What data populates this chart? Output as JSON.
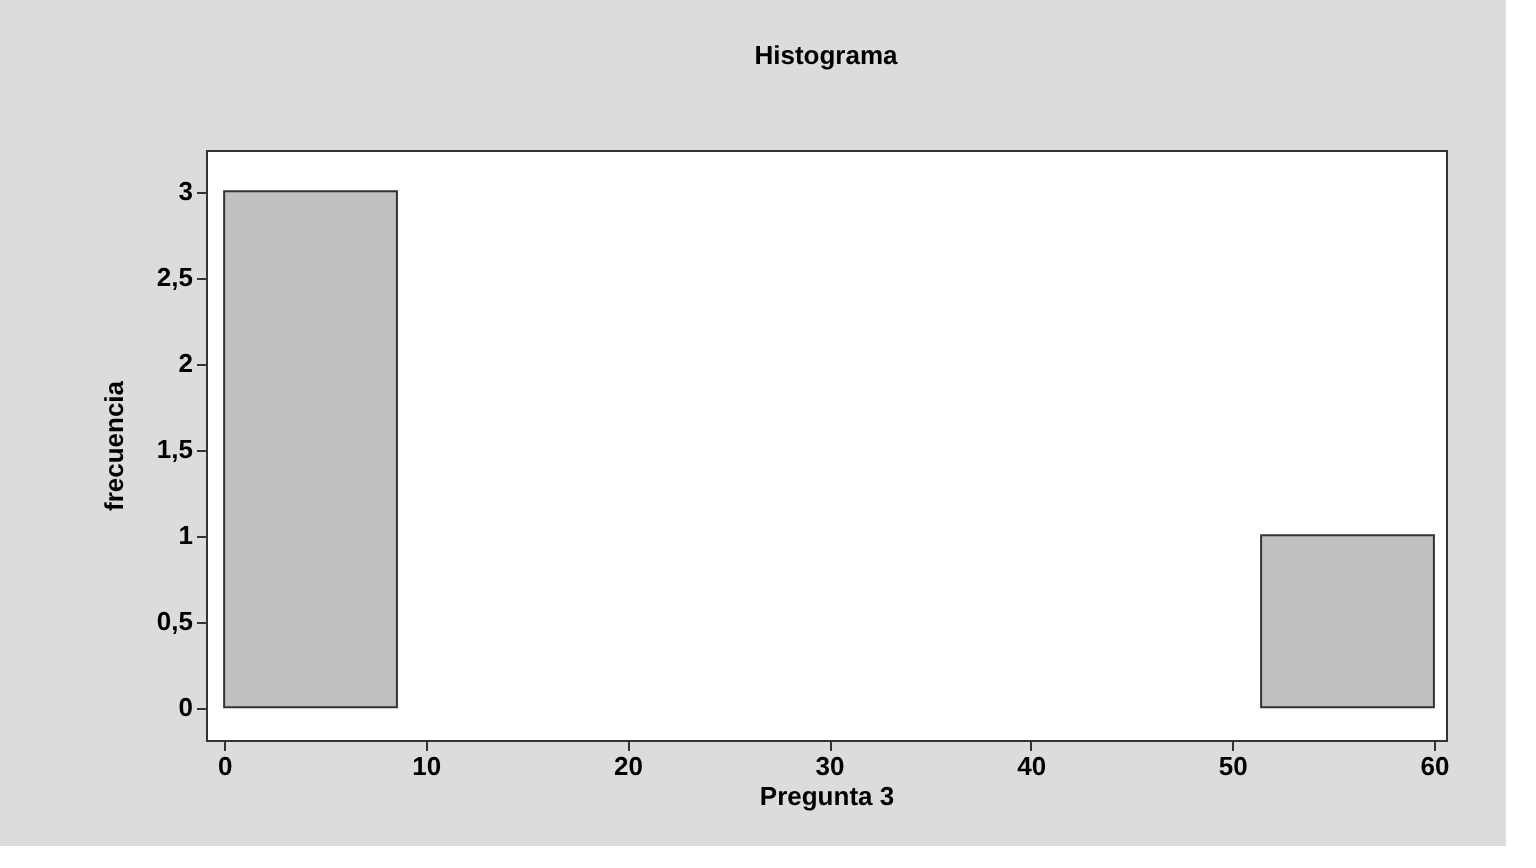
{
  "chart_data": {
    "type": "histogram",
    "title": "Histograma",
    "xlabel": "Pregunta 3",
    "ylabel": "frecuencia",
    "bins": [
      0,
      8.57,
      17.14,
      25.71,
      34.29,
      42.86,
      51.43,
      60
    ],
    "values": [
      3,
      0,
      0,
      0,
      0,
      0,
      1
    ],
    "color": "#c0c0c0",
    "xlim": [
      -0.9,
      60.6
    ],
    "xticks": [
      0,
      10,
      20,
      30,
      40,
      50,
      60
    ],
    "ylim": [
      -0.19,
      3.24
    ],
    "yticks": [
      0,
      {
        "value": 0.5,
        "label": "0,5"
      },
      1,
      {
        "value": 1.5,
        "label": "1,5"
      },
      2,
      {
        "value": 2.5,
        "label": "2,5"
      },
      3
    ],
    "grid": false
  }
}
